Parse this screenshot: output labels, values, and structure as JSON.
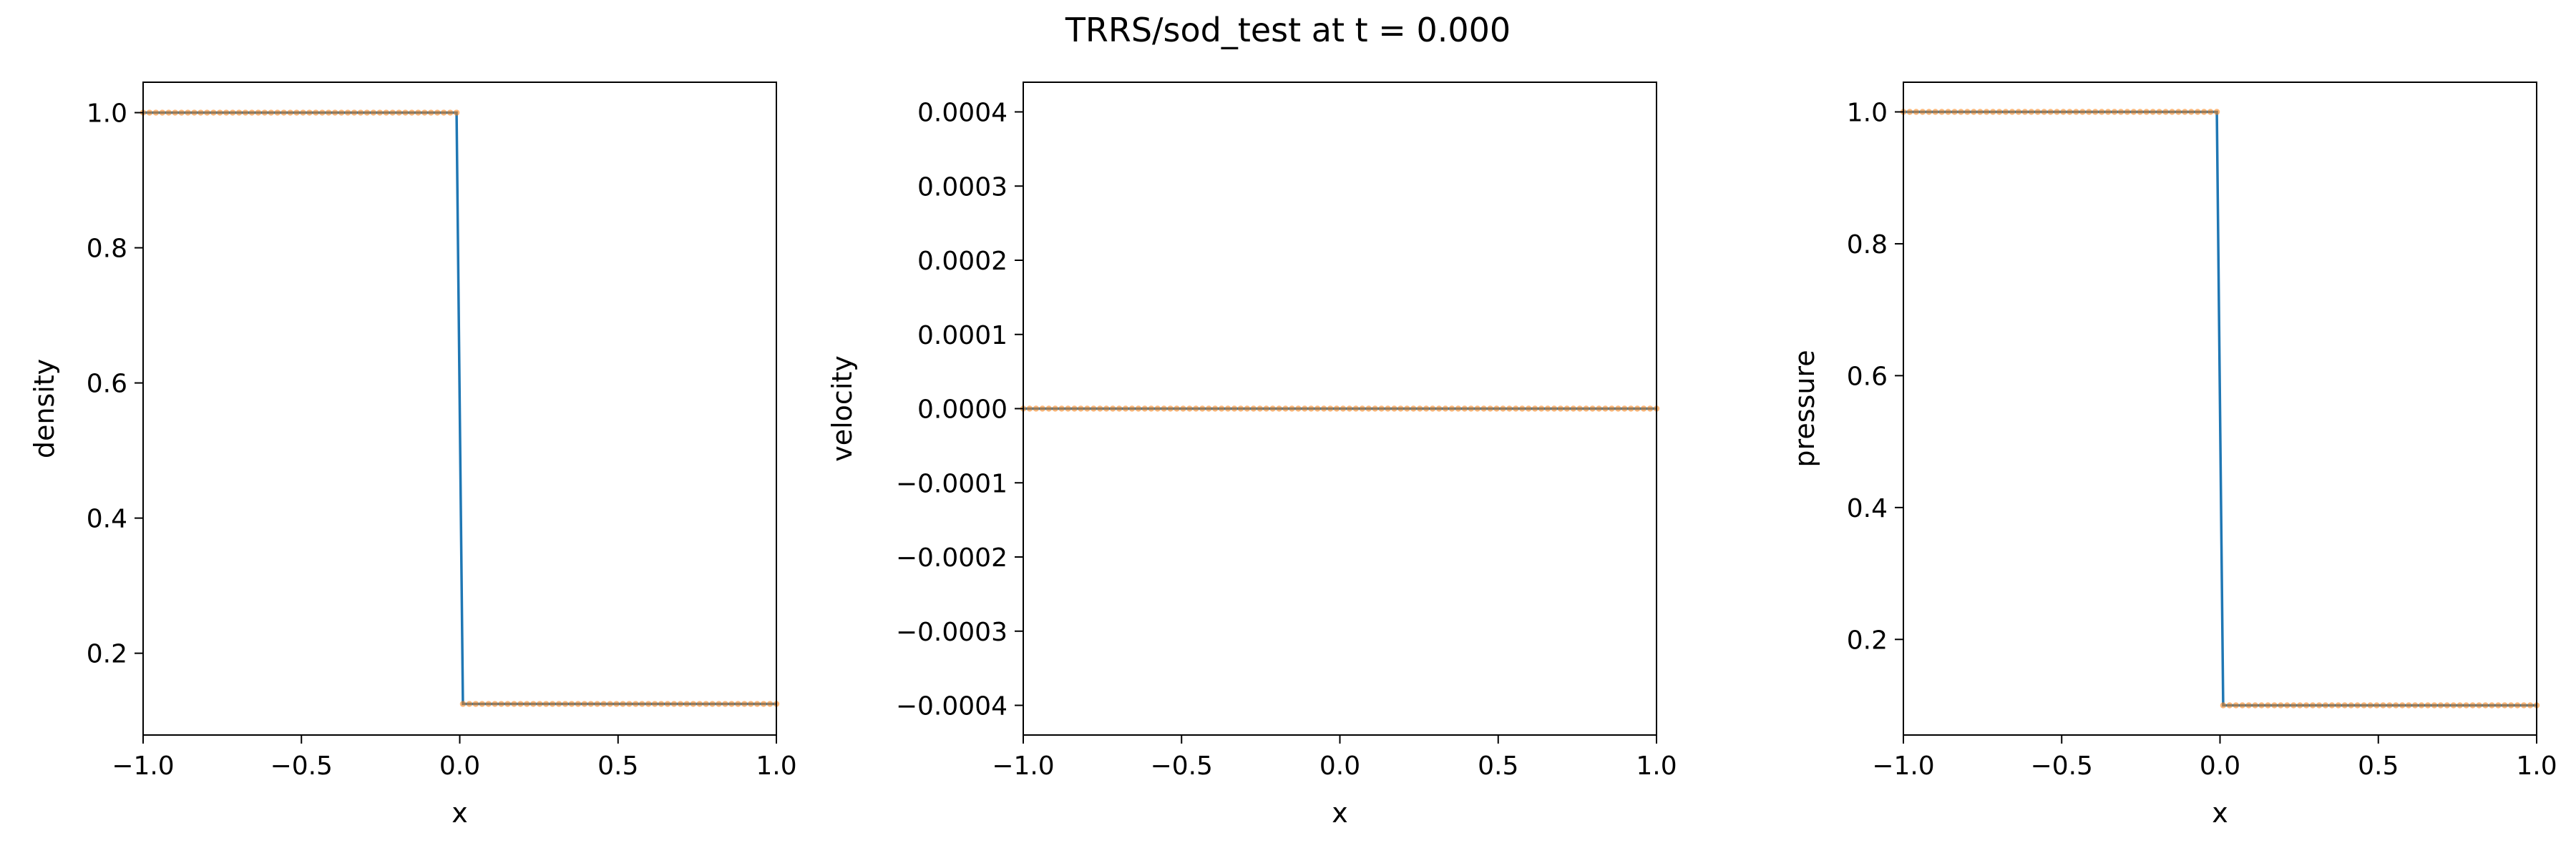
{
  "figure": {
    "title": "TRRS/sod_test at t = 0.000"
  },
  "colors": {
    "line": "#1f77b4",
    "markers": "#ff7f0e",
    "axes": "#000000",
    "background": "#ffffff"
  },
  "chart_data": [
    {
      "type": "line",
      "xlabel": "x",
      "ylabel": "density",
      "xlim": [
        -1.0,
        1.0
      ],
      "ylim": [
        0.079,
        1.045
      ],
      "xticks": [
        -1.0,
        -0.5,
        0.0,
        0.5,
        1.0
      ],
      "xtick_labels": [
        "−1.0",
        "−0.5",
        "0.0",
        "0.5",
        "1.0"
      ],
      "yticks": [
        0.2,
        0.4,
        0.6,
        0.8,
        1.0
      ],
      "ytick_labels": [
        "0.2",
        "0.4",
        "0.6",
        "0.8",
        "1.0"
      ],
      "grid": false,
      "legend": "none",
      "series": [
        {
          "kind": "line",
          "x": [
            -1.0,
            -0.01,
            0.01,
            1.0
          ],
          "y": [
            1.0,
            1.0,
            0.125,
            0.125
          ]
        },
        {
          "kind": "markers",
          "segments": [
            {
              "x0": -1.0,
              "x1": -0.01,
              "y": 1.0,
              "count": 50
            },
            {
              "x0": 0.01,
              "x1": 1.0,
              "y": 0.125,
              "count": 50
            }
          ]
        }
      ]
    },
    {
      "type": "line",
      "xlabel": "x",
      "ylabel": "velocity",
      "xlim": [
        -1.0,
        1.0
      ],
      "ylim": [
        -0.00044,
        0.00044
      ],
      "xticks": [
        -1.0,
        -0.5,
        0.0,
        0.5,
        1.0
      ],
      "xtick_labels": [
        "−1.0",
        "−0.5",
        "0.0",
        "0.5",
        "1.0"
      ],
      "yticks": [
        -0.0004,
        -0.0003,
        -0.0002,
        -0.0001,
        0.0,
        0.0001,
        0.0002,
        0.0003,
        0.0004
      ],
      "ytick_labels": [
        "−0.0004",
        "−0.0003",
        "−0.0002",
        "−0.0001",
        "0.0000",
        "0.0001",
        "0.0002",
        "0.0003",
        "0.0004"
      ],
      "grid": false,
      "legend": "none",
      "series": [
        {
          "kind": "line",
          "x": [
            -1.0,
            1.0
          ],
          "y": [
            0.0,
            0.0
          ]
        },
        {
          "kind": "markers",
          "segments": [
            {
              "x0": -1.0,
              "x1": 1.0,
              "y": 0.0,
              "count": 100
            }
          ]
        }
      ]
    },
    {
      "type": "line",
      "xlabel": "x",
      "ylabel": "pressure",
      "xlim": [
        -1.0,
        1.0
      ],
      "ylim": [
        0.055,
        1.045
      ],
      "xticks": [
        -1.0,
        -0.5,
        0.0,
        0.5,
        1.0
      ],
      "xtick_labels": [
        "−1.0",
        "−0.5",
        "0.0",
        "0.5",
        "1.0"
      ],
      "yticks": [
        0.2,
        0.4,
        0.6,
        0.8,
        1.0
      ],
      "ytick_labels": [
        "0.2",
        "0.4",
        "0.6",
        "0.8",
        "1.0"
      ],
      "grid": false,
      "legend": "none",
      "series": [
        {
          "kind": "line",
          "x": [
            -1.0,
            -0.01,
            0.01,
            1.0
          ],
          "y": [
            1.0,
            1.0,
            0.1,
            0.1
          ]
        },
        {
          "kind": "markers",
          "segments": [
            {
              "x0": -1.0,
              "x1": -0.01,
              "y": 1.0,
              "count": 50
            },
            {
              "x0": 0.01,
              "x1": 1.0,
              "y": 0.1,
              "count": 50
            }
          ]
        }
      ]
    }
  ]
}
